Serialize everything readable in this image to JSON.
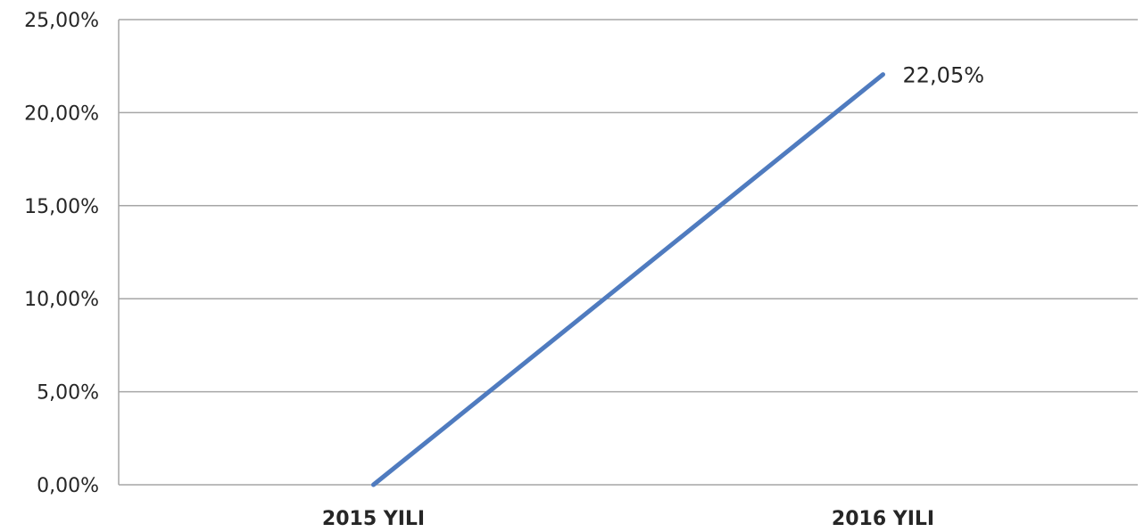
{
  "chart_data": {
    "type": "line",
    "title": "",
    "xlabel": "",
    "ylabel": "",
    "categories": [
      "2015 YILI",
      "2016 YILI"
    ],
    "series": [
      {
        "values": [
          0.0,
          22.05
        ],
        "color": "#4f7bbf",
        "data_labels": [
          null,
          "22,05%"
        ]
      }
    ],
    "ylim": [
      0,
      25
    ],
    "y_ticks": [
      0,
      5,
      10,
      15,
      20,
      25
    ],
    "y_tick_labels": [
      "0,00%",
      "5,00%",
      "10,00%",
      "15,00%",
      "20,00%",
      "25,00%"
    ],
    "grid": true,
    "legend": "none",
    "colors": {
      "gridline": "#a6a6a6",
      "axis": "#a6a6a6",
      "text": "#262626"
    }
  }
}
